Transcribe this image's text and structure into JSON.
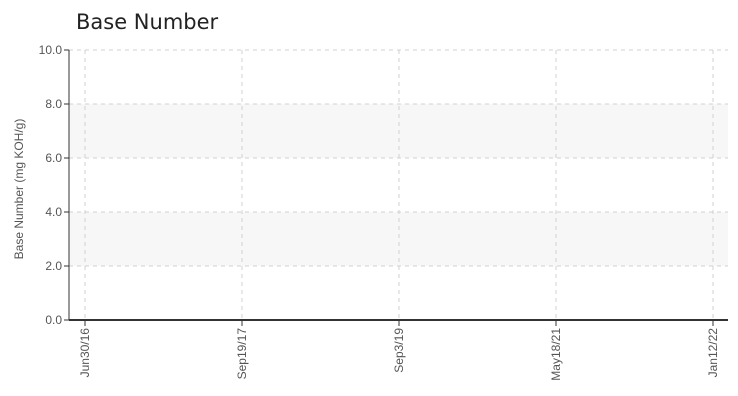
{
  "chart_data": {
    "type": "line",
    "title": "Base Number",
    "xlabel": "",
    "ylabel": "Base Number (mg KOH/g)",
    "x_ticks": [
      "Jun30/16",
      "Sep19/17",
      "Sep3/19",
      "May18/21",
      "Jan12/22"
    ],
    "y_ticks": [
      "0.0",
      "2.0",
      "4.0",
      "6.0",
      "8.0",
      "10.0"
    ],
    "ylim": [
      0,
      10
    ],
    "y_tick_values": [
      0,
      2,
      4,
      6,
      8,
      10
    ],
    "grid": true,
    "shaded_bands": [
      [
        2,
        4
      ],
      [
        6,
        8
      ]
    ],
    "series": [],
    "colors": {
      "axis": "#333333",
      "grid": "#d0d0d0",
      "band": "#f7f7f7",
      "text": "#555555"
    }
  }
}
